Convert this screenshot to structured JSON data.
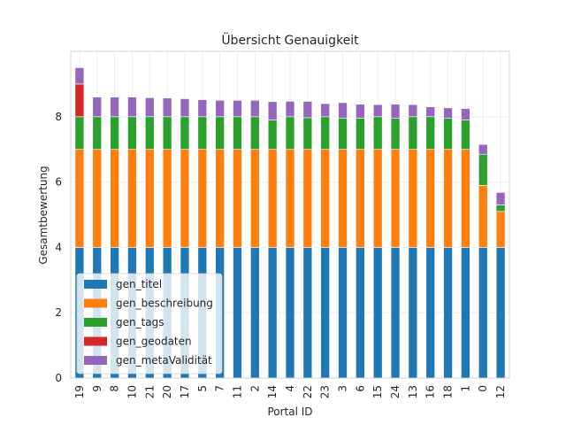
{
  "chart_data": {
    "type": "bar",
    "stacked": true,
    "title": "Übersicht Genauigkeit",
    "xlabel": "Portal ID",
    "ylabel": "Gesamtbewertung",
    "ylim": [
      0,
      10
    ],
    "yticks": [
      0,
      2,
      4,
      6,
      8
    ],
    "grid": true,
    "legend_position": "lower-left",
    "categories": [
      "19",
      "9",
      "8",
      "10",
      "21",
      "20",
      "17",
      "5",
      "7",
      "11",
      "2",
      "14",
      "4",
      "22",
      "23",
      "3",
      "6",
      "15",
      "24",
      "13",
      "16",
      "18",
      "1",
      "0",
      "12"
    ],
    "series": [
      {
        "name": "gen_titel",
        "color": "#1f77b4",
        "values": [
          4,
          4,
          4,
          4,
          4,
          4,
          4,
          4,
          4,
          4,
          4,
          4,
          4,
          4,
          4,
          4,
          4,
          4,
          4,
          4,
          4,
          4,
          4,
          4,
          4
        ]
      },
      {
        "name": "gen_beschreibung",
        "color": "#ff7f0e",
        "values": [
          3,
          3,
          3,
          3,
          3,
          3,
          3,
          3,
          3,
          3,
          3,
          3,
          3,
          3,
          3,
          3,
          3,
          3,
          3,
          3,
          3,
          3,
          3,
          1.9,
          1.1
        ]
      },
      {
        "name": "gen_tags",
        "color": "#2ca02c",
        "values": [
          1,
          1,
          1,
          1,
          1,
          1,
          1,
          1,
          1,
          1,
          1,
          0.9,
          1,
          0.97,
          1,
          0.95,
          0.95,
          1,
          0.95,
          1,
          1,
          0.95,
          0.9,
          0.95,
          0.2
        ]
      },
      {
        "name": "gen_geodaten",
        "color": "#d62728",
        "values": [
          1,
          0,
          0,
          0,
          0,
          0,
          0,
          0,
          0,
          0,
          0,
          0,
          0,
          0,
          0,
          0,
          0,
          0,
          0,
          0,
          0,
          0,
          0,
          0,
          0
        ]
      },
      {
        "name": "gen_metaValidität",
        "color": "#9467bd",
        "values": [
          0.5,
          0.6,
          0.6,
          0.6,
          0.58,
          0.57,
          0.55,
          0.52,
          0.5,
          0.5,
          0.5,
          0.56,
          0.47,
          0.5,
          0.4,
          0.48,
          0.43,
          0.37,
          0.43,
          0.37,
          0.3,
          0.32,
          0.35,
          0.3,
          0.38
        ]
      }
    ]
  }
}
